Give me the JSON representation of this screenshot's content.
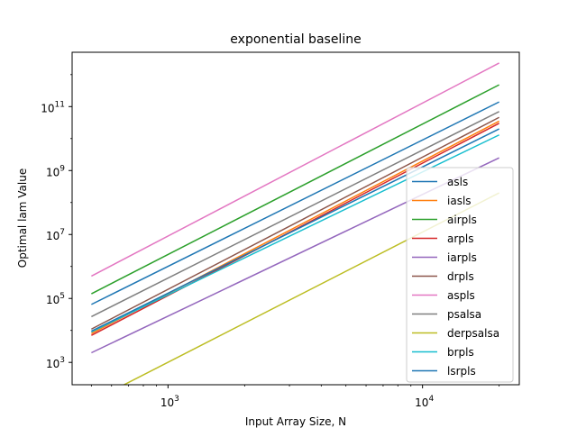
{
  "chart_data": {
    "type": "line",
    "title": "exponential baseline",
    "xlabel": "Input Array Size, N",
    "ylabel": "Optimal lam Value",
    "x_scale": "log",
    "y_scale": "log",
    "xlim": [
      420,
      24000
    ],
    "ylim": [
      200,
      5000000000000.0
    ],
    "x_major_ticks": [
      {
        "value": 1000,
        "base": "10",
        "exp": "3"
      },
      {
        "value": 10000,
        "base": "10",
        "exp": "4"
      }
    ],
    "x_minor_ticks": [
      500,
      600,
      700,
      800,
      900,
      2000,
      3000,
      4000,
      5000,
      6000,
      7000,
      8000,
      9000,
      20000
    ],
    "y_major_ticks": [
      {
        "value": 1000,
        "base": "10",
        "exp": "3"
      },
      {
        "value": 100000,
        "base": "10",
        "exp": "5"
      },
      {
        "value": 10000000,
        "base": "10",
        "exp": "7"
      },
      {
        "value": 1000000000,
        "base": "10",
        "exp": "9"
      },
      {
        "value": 100000000000,
        "base": "10",
        "exp": "11"
      }
    ],
    "grid": false,
    "legend_position": "lower right",
    "series": [
      {
        "name": "asls",
        "color": "#1f77b4",
        "x": [
          500,
          20000
        ],
        "y": [
          65000,
          140000000000.0
        ]
      },
      {
        "name": "iasls",
        "color": "#ff7f0e",
        "x": [
          500,
          20000
        ],
        "y": [
          8000,
          35000000000.0
        ]
      },
      {
        "name": "airpls",
        "color": "#2ca02c",
        "x": [
          500,
          20000
        ],
        "y": [
          140000,
          480000000000.0
        ]
      },
      {
        "name": "arpls",
        "color": "#d62728",
        "x": [
          500,
          20000
        ],
        "y": [
          7000,
          30000000000.0
        ]
      },
      {
        "name": "iarpls",
        "color": "#9467bd",
        "x": [
          500,
          20000
        ],
        "y": [
          2000,
          2500000000.0
        ]
      },
      {
        "name": "drpls",
        "color": "#8c564b",
        "x": [
          500,
          20000
        ],
        "y": [
          11000,
          46000000000.0
        ]
      },
      {
        "name": "aspls",
        "color": "#e377c2",
        "x": [
          500,
          20000
        ],
        "y": [
          500000,
          2300000000000.0
        ]
      },
      {
        "name": "psalsa",
        "color": "#7f7f7f",
        "x": [
          500,
          20000
        ],
        "y": [
          27000,
          70000000000.0
        ]
      },
      {
        "name": "derpsalsa",
        "color": "#bcbd22",
        "x": [
          500,
          20000
        ],
        "y": [
          60,
          200000000.0
        ]
      },
      {
        "name": "brpls",
        "color": "#17becf",
        "x": [
          500,
          20000
        ],
        "y": [
          9000,
          13000000000.0
        ]
      },
      {
        "name": "lsrpls",
        "color": "#1f77b4",
        "x": [
          500,
          20000
        ],
        "y": [
          9500,
          20000000000.0
        ]
      }
    ]
  }
}
